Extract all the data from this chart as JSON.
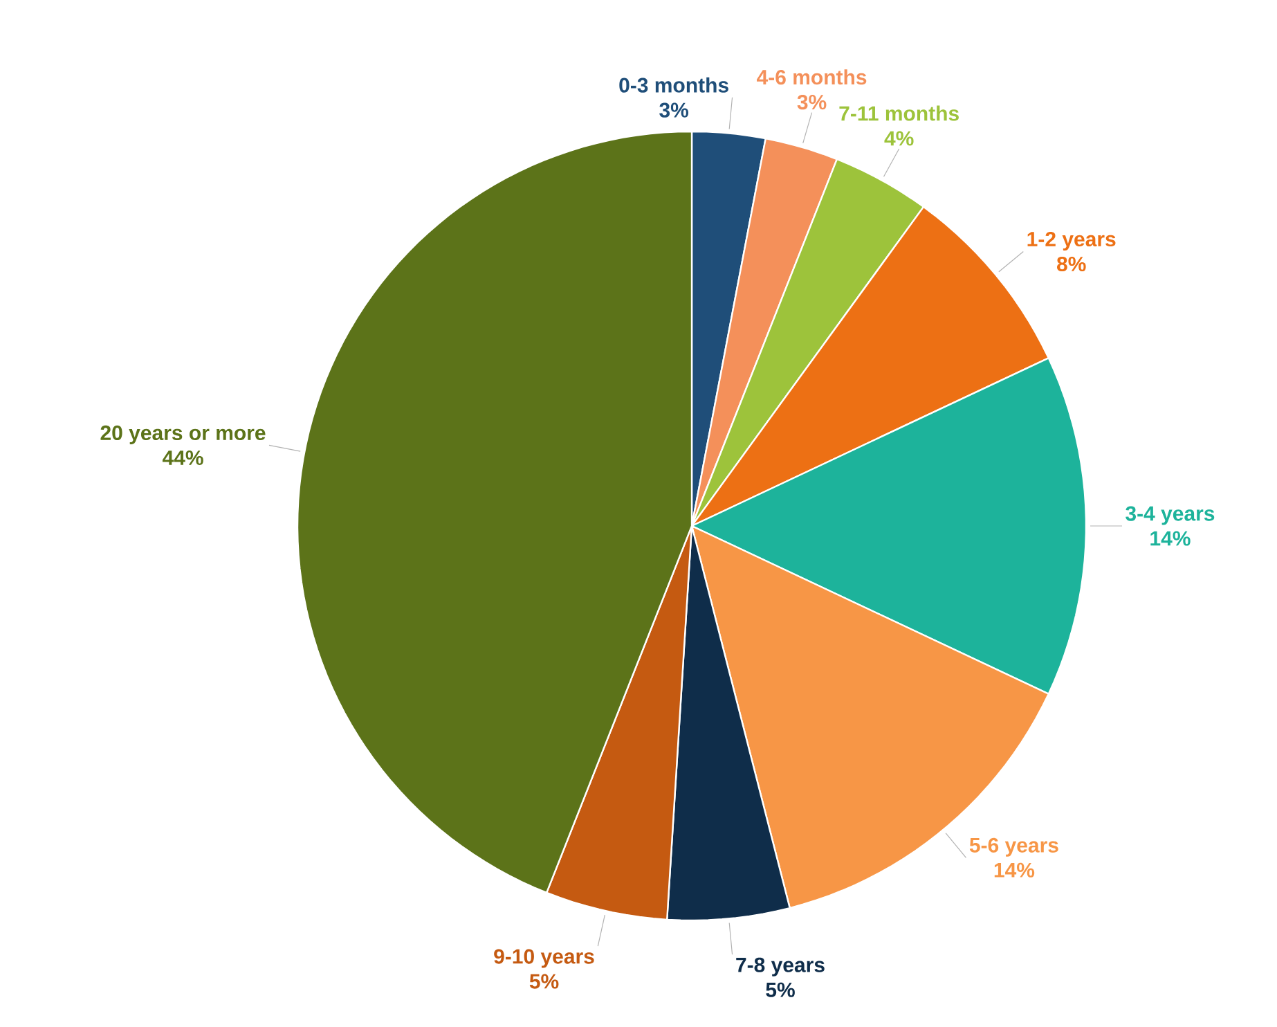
{
  "chart_data": {
    "type": "pie",
    "categories": [
      "0-3 months",
      "4-6 months",
      "7-11 months",
      "1-2 years",
      "3-4 years",
      "5-6 years",
      "7-8 years",
      "9-10 years",
      "20 years or more"
    ],
    "values": [
      3,
      3,
      4,
      8,
      14,
      14,
      5,
      5,
      44
    ],
    "colors": [
      "#1f4e79",
      "#f4905a",
      "#9dc33b",
      "#ed7014",
      "#1db39b",
      "#f79646",
      "#0f2d4a",
      "#c55a11",
      "#5c7319"
    ],
    "value_labels": [
      "3%",
      "3%",
      "4%",
      "8%",
      "14%",
      "14%",
      "5%",
      "5%",
      "44%"
    ]
  }
}
